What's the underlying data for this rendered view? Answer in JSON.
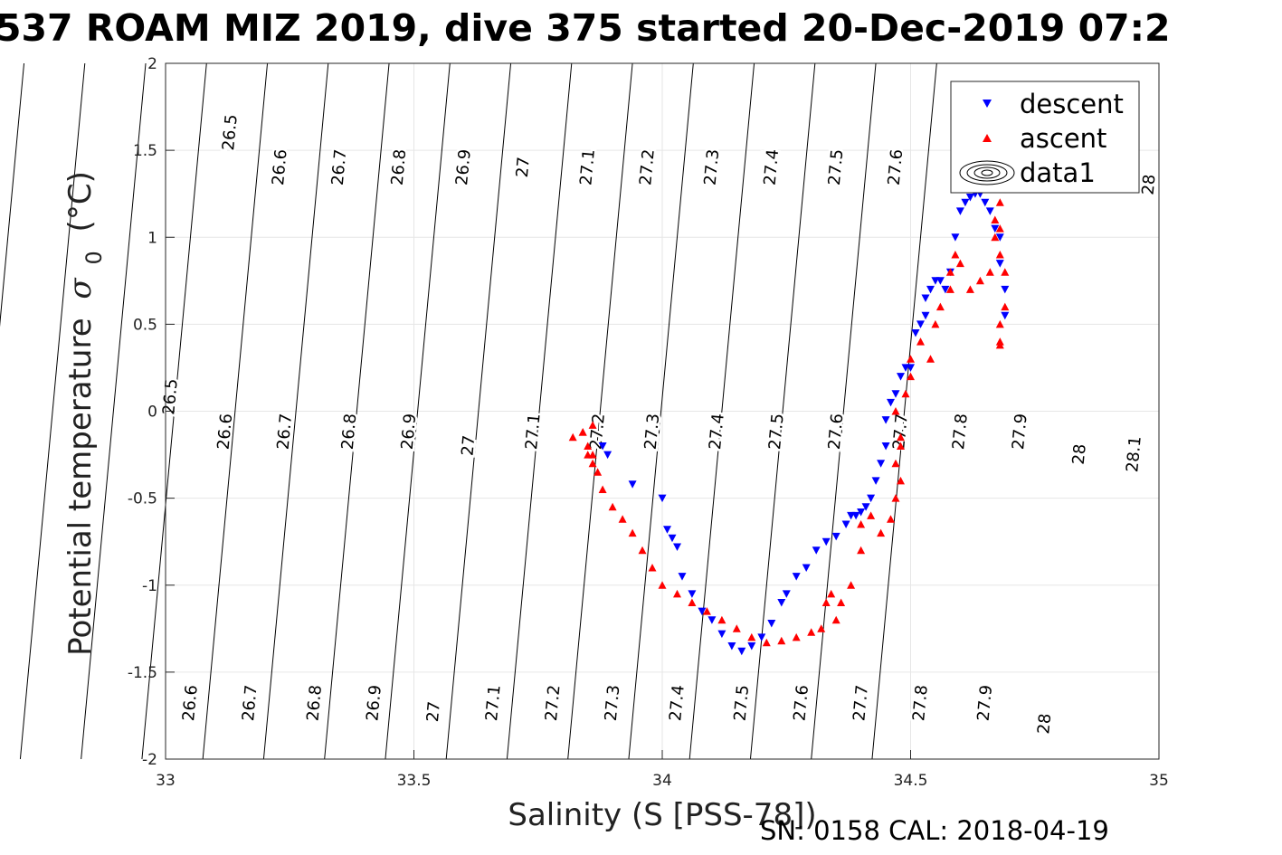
{
  "chart_data": {
    "type": "scatter",
    "title": "537 ROAM MIZ 2019, dive 375 started 20-Dec-2019 07:2",
    "xlabel": "Salinity (S [PSS-78])",
    "ylabel": "Potential temperature σ₀ (°C)",
    "ylabel_main": "Potential temperature",
    "ylabel_sigma": "σ",
    "ylabel_sub": "0",
    "ylabel_unit": "(°C)",
    "footer": "SN: 0158  CAL: 2018-04-19",
    "xlim": [
      33,
      35
    ],
    "ylim": [
      -2,
      2
    ],
    "grid": true,
    "legend_position": "top-right",
    "x_ticks": [
      "33",
      "33.5",
      "34",
      "34.5",
      "35"
    ],
    "y_ticks": [
      "-2",
      "-1.5",
      "-1",
      "-0.5",
      "0",
      "0.5",
      "1",
      "1.5",
      "2"
    ],
    "legend": [
      "descent",
      "ascent",
      "data1"
    ],
    "contour_levels": [
      26.5,
      26.6,
      26.7,
      26.8,
      26.9,
      27,
      27.1,
      27.2,
      27.3,
      27.4,
      27.5,
      27.6,
      27.7,
      27.8,
      27.9,
      28,
      28.1
    ],
    "contour_labels": [
      {
        "text": "26.5",
        "at": [
          33.14,
          1.6
        ]
      },
      {
        "text": "26.6",
        "at": [
          33.24,
          1.4
        ]
      },
      {
        "text": "26.7",
        "at": [
          33.36,
          1.4
        ]
      },
      {
        "text": "26.8",
        "at": [
          33.48,
          1.4
        ]
      },
      {
        "text": "26.9",
        "at": [
          33.61,
          1.4
        ]
      },
      {
        "text": "27",
        "at": [
          33.73,
          1.4
        ]
      },
      {
        "text": "27.1",
        "at": [
          33.86,
          1.4
        ]
      },
      {
        "text": "27.2",
        "at": [
          33.98,
          1.4
        ]
      },
      {
        "text": "27.3",
        "at": [
          34.11,
          1.4
        ]
      },
      {
        "text": "27.4",
        "at": [
          34.23,
          1.4
        ]
      },
      {
        "text": "27.5",
        "at": [
          34.36,
          1.4
        ]
      },
      {
        "text": "27.6",
        "at": [
          34.48,
          1.4
        ]
      },
      {
        "text": "28",
        "at": [
          34.99,
          1.3
        ]
      },
      {
        "text": "26.5",
        "at": [
          33.02,
          0.08
        ]
      },
      {
        "text": "26.6",
        "at": [
          33.13,
          -0.12
        ]
      },
      {
        "text": "26.7",
        "at": [
          33.25,
          -0.12
        ]
      },
      {
        "text": "26.8",
        "at": [
          33.38,
          -0.12
        ]
      },
      {
        "text": "26.9",
        "at": [
          33.5,
          -0.12
        ]
      },
      {
        "text": "27",
        "at": [
          33.62,
          -0.2
        ]
      },
      {
        "text": "27.1",
        "at": [
          33.75,
          -0.12
        ]
      },
      {
        "text": "27.2",
        "at": [
          33.88,
          -0.12
        ]
      },
      {
        "text": "27.3",
        "at": [
          33.99,
          -0.12
        ]
      },
      {
        "text": "27.4",
        "at": [
          34.12,
          -0.12
        ]
      },
      {
        "text": "27.5",
        "at": [
          34.24,
          -0.12
        ]
      },
      {
        "text": "27.6",
        "at": [
          34.36,
          -0.12
        ]
      },
      {
        "text": "27.7",
        "at": [
          34.49,
          -0.12
        ]
      },
      {
        "text": "27.8",
        "at": [
          34.61,
          -0.12
        ]
      },
      {
        "text": "27.9",
        "at": [
          34.73,
          -0.12
        ]
      },
      {
        "text": "28",
        "at": [
          34.85,
          -0.25
        ]
      },
      {
        "text": "28.1",
        "at": [
          34.96,
          -0.25
        ]
      },
      {
        "text": "26.6",
        "at": [
          33.06,
          -1.68
        ]
      },
      {
        "text": "26.7",
        "at": [
          33.18,
          -1.68
        ]
      },
      {
        "text": "26.8",
        "at": [
          33.31,
          -1.68
        ]
      },
      {
        "text": "26.9",
        "at": [
          33.43,
          -1.68
        ]
      },
      {
        "text": "27",
        "at": [
          33.55,
          -1.73
        ]
      },
      {
        "text": "27.1",
        "at": [
          33.67,
          -1.68
        ]
      },
      {
        "text": "27.2",
        "at": [
          33.79,
          -1.68
        ]
      },
      {
        "text": "27.3",
        "at": [
          33.91,
          -1.68
        ]
      },
      {
        "text": "27.4",
        "at": [
          34.04,
          -1.68
        ]
      },
      {
        "text": "27.5",
        "at": [
          34.17,
          -1.68
        ]
      },
      {
        "text": "27.6",
        "at": [
          34.29,
          -1.68
        ]
      },
      {
        "text": "27.7",
        "at": [
          34.41,
          -1.68
        ]
      },
      {
        "text": "27.8",
        "at": [
          34.53,
          -1.68
        ]
      },
      {
        "text": "27.9",
        "at": [
          34.66,
          -1.68
        ]
      },
      {
        "text": "28",
        "at": [
          34.78,
          -1.8
        ]
      }
    ],
    "series": [
      {
        "name": "descent",
        "color": "#0000ff",
        "marker": "triangle-down",
        "x": [
          33.88,
          33.89,
          33.94,
          34.0,
          34.01,
          34.02,
          34.03,
          34.04,
          34.06,
          34.08,
          34.1,
          34.12,
          34.14,
          34.16,
          34.18,
          34.2,
          34.22,
          34.24,
          34.25,
          34.27,
          34.29,
          34.31,
          34.33,
          34.35,
          34.37,
          34.38,
          34.39,
          34.4,
          34.41,
          34.42,
          34.43,
          34.44,
          34.45,
          34.45,
          34.46,
          34.47,
          34.48,
          34.49,
          34.5,
          34.51,
          34.52,
          34.53,
          34.53,
          34.54,
          34.55,
          34.56,
          34.57,
          34.58,
          34.59,
          34.6,
          34.61,
          34.62,
          34.63,
          34.64,
          34.65,
          34.66,
          34.67,
          34.68,
          34.68,
          34.69,
          34.69
        ],
        "y": [
          -0.2,
          -0.25,
          -0.42,
          -0.5,
          -0.68,
          -0.73,
          -0.78,
          -0.95,
          -1.05,
          -1.15,
          -1.2,
          -1.28,
          -1.35,
          -1.38,
          -1.35,
          -1.3,
          -1.22,
          -1.1,
          -1.05,
          -0.95,
          -0.9,
          -0.8,
          -0.75,
          -0.72,
          -0.65,
          -0.6,
          -0.6,
          -0.58,
          -0.55,
          -0.5,
          -0.4,
          -0.3,
          -0.2,
          -0.05,
          0.05,
          0.1,
          0.2,
          0.25,
          0.25,
          0.45,
          0.5,
          0.55,
          0.65,
          0.7,
          0.75,
          0.75,
          0.7,
          0.8,
          1.0,
          1.15,
          1.2,
          1.23,
          1.25,
          1.25,
          1.2,
          1.15,
          1.05,
          1.0,
          0.85,
          0.7,
          0.55
        ]
      },
      {
        "name": "ascent",
        "color": "#ff0000",
        "marker": "triangle-up",
        "x": [
          33.82,
          33.84,
          33.85,
          33.86,
          33.87,
          33.86,
          33.85,
          33.84,
          33.86,
          33.88,
          33.9,
          33.92,
          33.94,
          33.96,
          33.98,
          34.0,
          34.03,
          34.06,
          34.09,
          34.12,
          34.15,
          34.18,
          34.21,
          34.24,
          34.27,
          34.3,
          34.32,
          34.33,
          34.34,
          34.35,
          34.36,
          34.38,
          34.4,
          34.4,
          34.42,
          34.44,
          34.46,
          34.47,
          34.48,
          34.48,
          34.47,
          34.47,
          34.48,
          34.49,
          34.5,
          34.5,
          34.52,
          34.54,
          34.55,
          34.56,
          34.58,
          34.58,
          34.59,
          34.6,
          34.62,
          34.64,
          34.66,
          34.67,
          34.67,
          34.68,
          34.68,
          34.68,
          34.69,
          34.69,
          34.68,
          34.68,
          34.68
        ],
        "y": [
          -0.15,
          -0.12,
          -0.2,
          -0.25,
          -0.35,
          -0.3,
          -0.25,
          -0.12,
          -0.08,
          -0.45,
          -0.55,
          -0.62,
          -0.7,
          -0.8,
          -0.9,
          -1.0,
          -1.05,
          -1.1,
          -1.15,
          -1.2,
          -1.25,
          -1.3,
          -1.33,
          -1.32,
          -1.3,
          -1.27,
          -1.25,
          -1.1,
          -1.05,
          -1.2,
          -1.1,
          -1.0,
          -0.8,
          -0.65,
          -0.6,
          -0.7,
          -0.62,
          -0.5,
          -0.4,
          -0.2,
          0.0,
          -0.3,
          -0.15,
          0.1,
          0.2,
          0.3,
          0.4,
          0.3,
          0.5,
          0.6,
          0.7,
          0.8,
          0.9,
          0.85,
          0.7,
          0.75,
          0.8,
          1.0,
          1.1,
          1.2,
          1.05,
          0.9,
          0.8,
          0.6,
          0.5,
          0.4,
          0.38
        ]
      }
    ]
  }
}
